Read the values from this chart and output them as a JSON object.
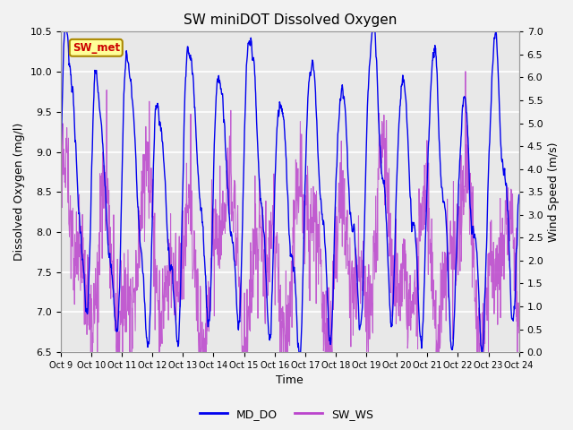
{
  "title": "SW miniDOT Dissolved Oxygen",
  "xlabel": "Time",
  "ylabel_left": "Dissolved Oxygen (mg/l)",
  "ylabel_right": "Wind Speed (m/s)",
  "ylim_left": [
    6.5,
    10.5
  ],
  "ylim_right": [
    0.0,
    7.0
  ],
  "yticks_left": [
    6.5,
    7.0,
    7.5,
    8.0,
    8.5,
    9.0,
    9.5,
    10.0,
    10.5
  ],
  "yticks_right": [
    0.0,
    0.5,
    1.0,
    1.5,
    2.0,
    2.5,
    3.0,
    3.5,
    4.0,
    4.5,
    5.0,
    5.5,
    6.0,
    6.5,
    7.0
  ],
  "xtick_labels": [
    "Oct 9",
    "Oct 10",
    "Oct 11",
    "Oct 12",
    "Oct 13",
    "Oct 14",
    "Oct 15",
    "Oct 16",
    "Oct 17",
    "Oct 18",
    "Oct 19",
    "Oct 20",
    "Oct 21",
    "Oct 22",
    "Oct 23",
    "Oct 24"
  ],
  "legend_labels": [
    "MD_DO",
    "SW_WS"
  ],
  "color_md_do": "#0000ee",
  "color_sw_ws": "#bb44cc",
  "annotation_text": "SW_met",
  "annotation_color": "#cc0000",
  "annotation_bg": "#ffff99",
  "annotation_border": "#aa8800",
  "fig_facecolor": "#f2f2f2",
  "plot_bg": "#e8e8e8",
  "grid_color": "#ffffff",
  "n_days": 15,
  "pts_per_day": 96,
  "seed": 7
}
